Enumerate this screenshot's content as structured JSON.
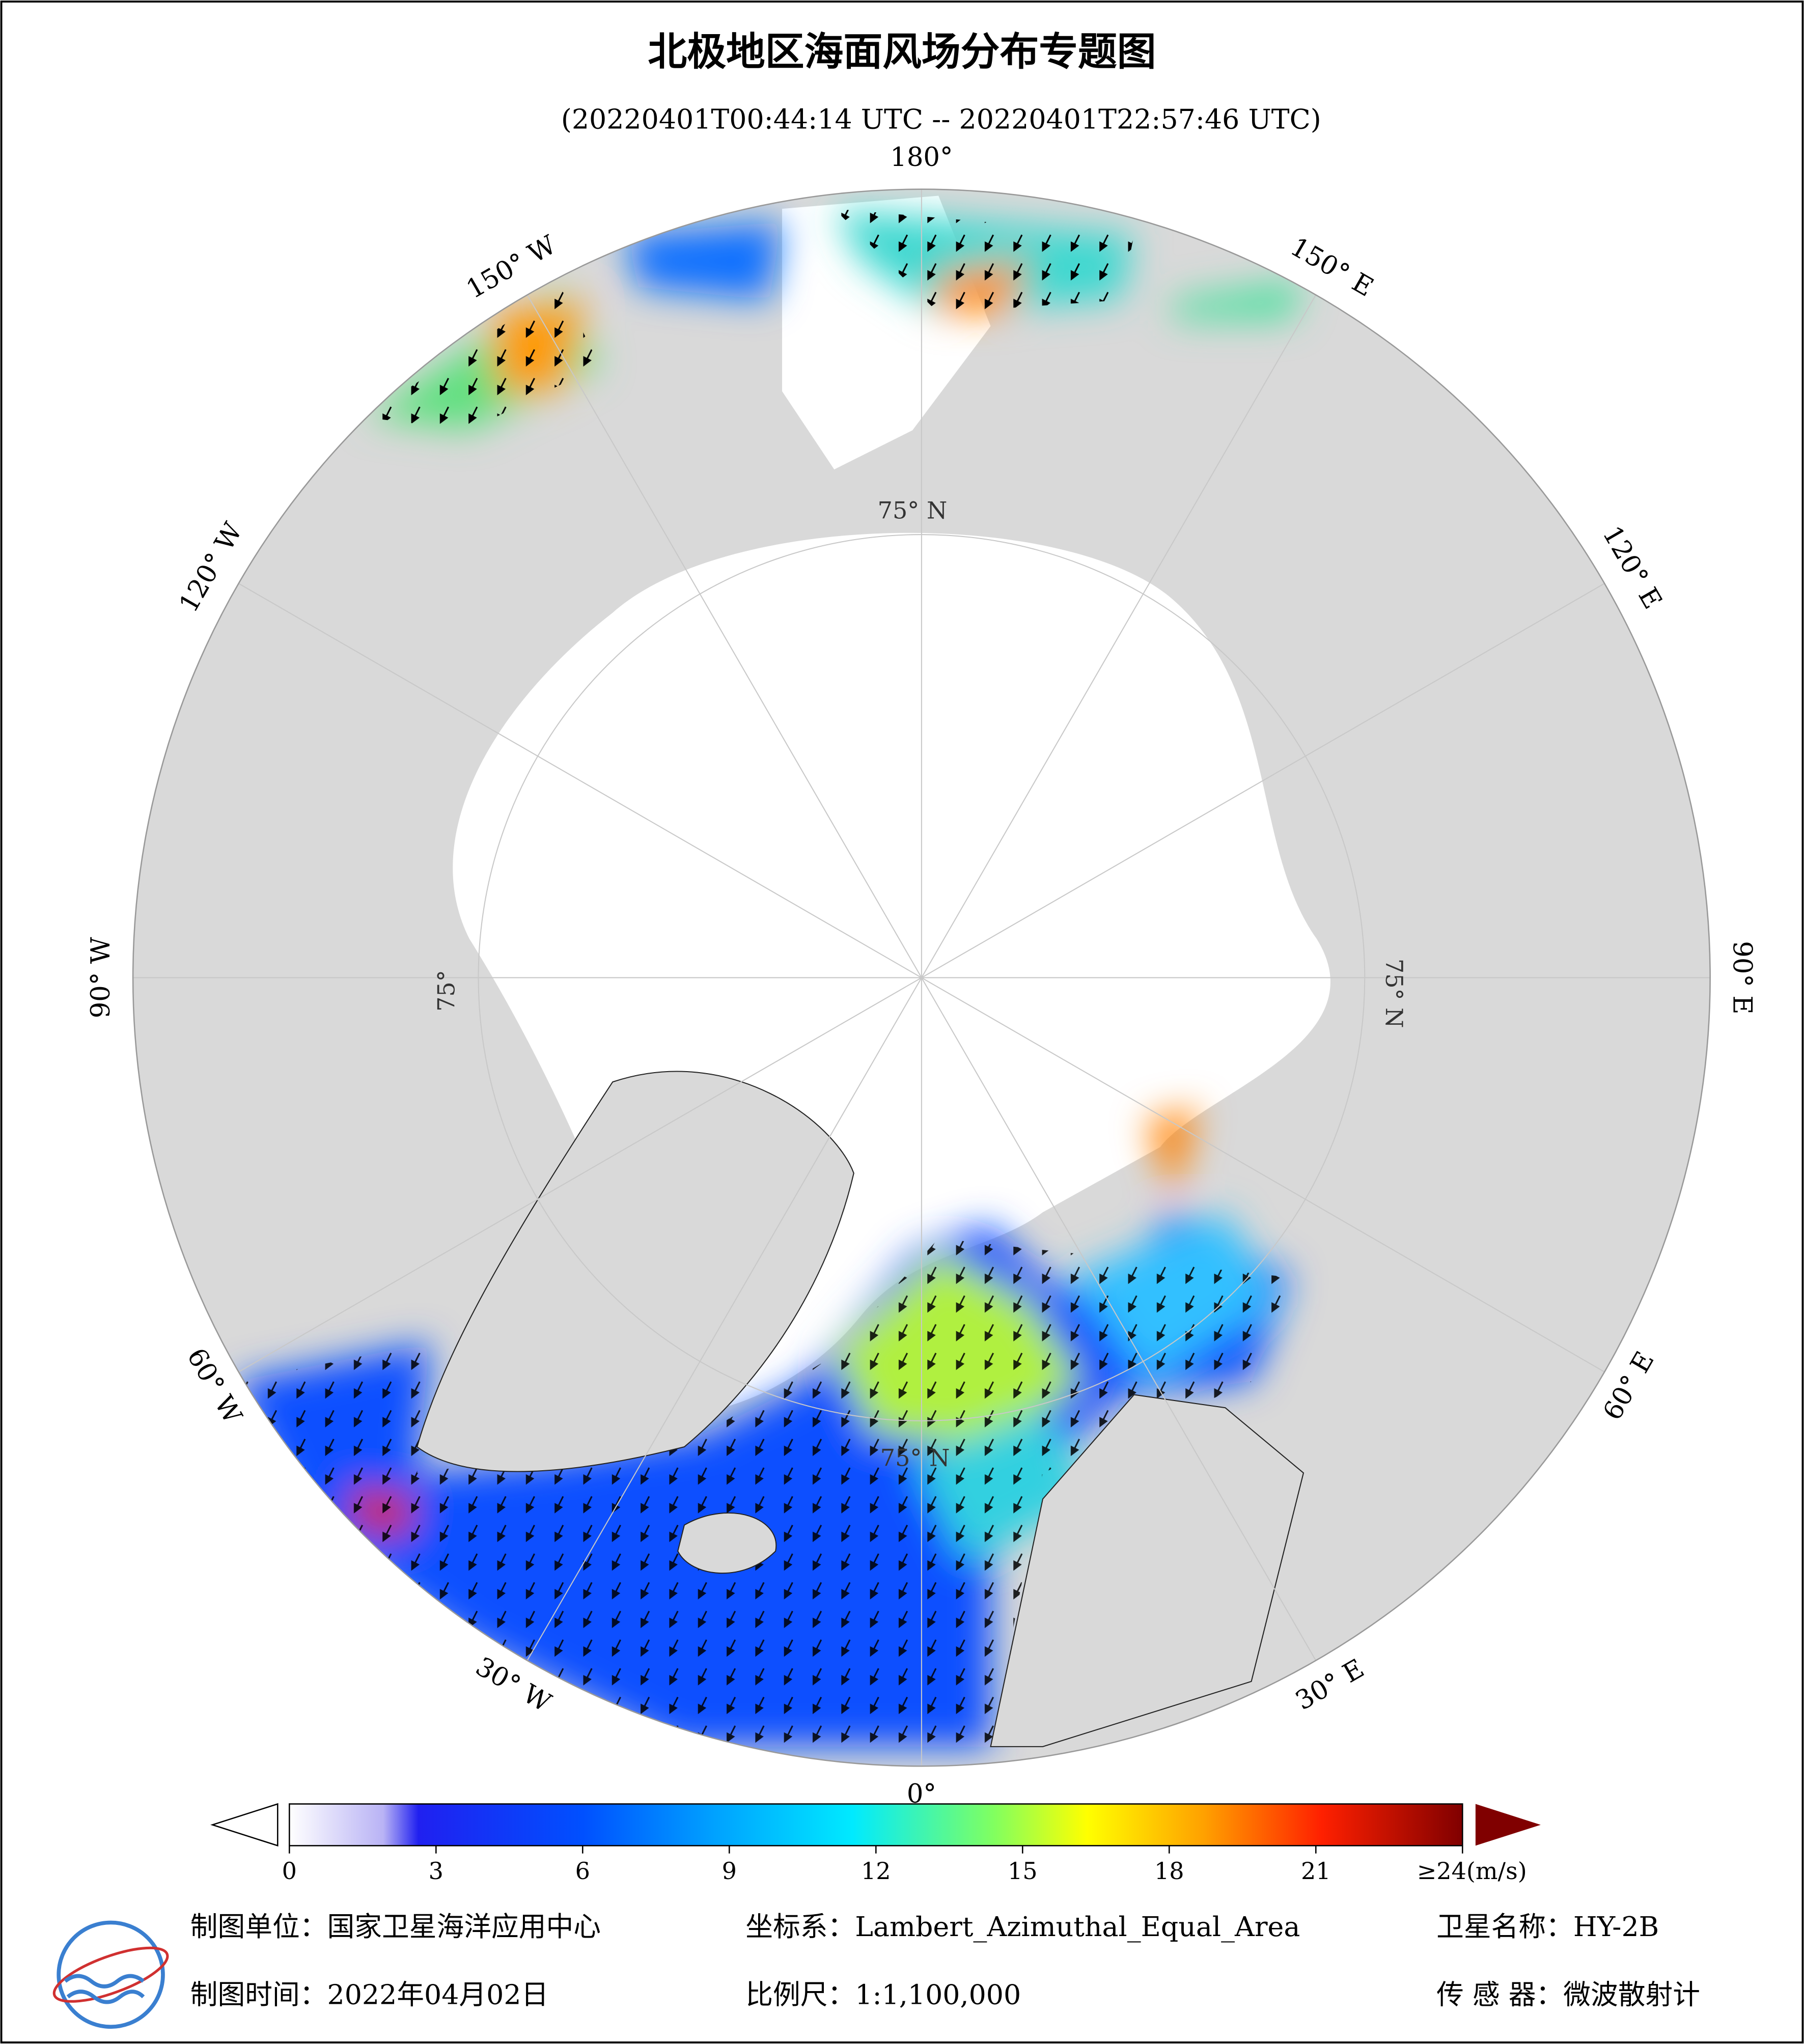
{
  "header": {
    "title": "北极地区海面风场分布专题图",
    "subtitle": "(20220401T00:44:14 UTC -- 20220401T22:57:46 UTC)"
  },
  "map": {
    "longitude_labels": [
      "180°",
      "150° E",
      "120° E",
      "90° E",
      "60° E",
      "30° E",
      "0°",
      "30° W",
      "60° W",
      "90° W",
      "120° W",
      "150° W"
    ],
    "latitude_labels": [
      "75° N",
      "75° N",
      "75° N",
      "75°"
    ]
  },
  "colorbar": {
    "range": [
      0,
      24
    ],
    "ticks": [
      0,
      3,
      6,
      9,
      12,
      15,
      18,
      21,
      {
        "value": 24,
        "label": "≥24(m/s)"
      }
    ]
  },
  "footer": {
    "unit": "制图单位：国家卫星海洋应用中心",
    "coordinate": "坐标系：Lambert_Azimuthal_Equal_Area",
    "satellite": "卫星名称：HY-2B",
    "date": "制图时间：2022年04月02日",
    "scale": "比例尺：1:1,100,000",
    "sensor": "传 感 器：微波散射计"
  }
}
